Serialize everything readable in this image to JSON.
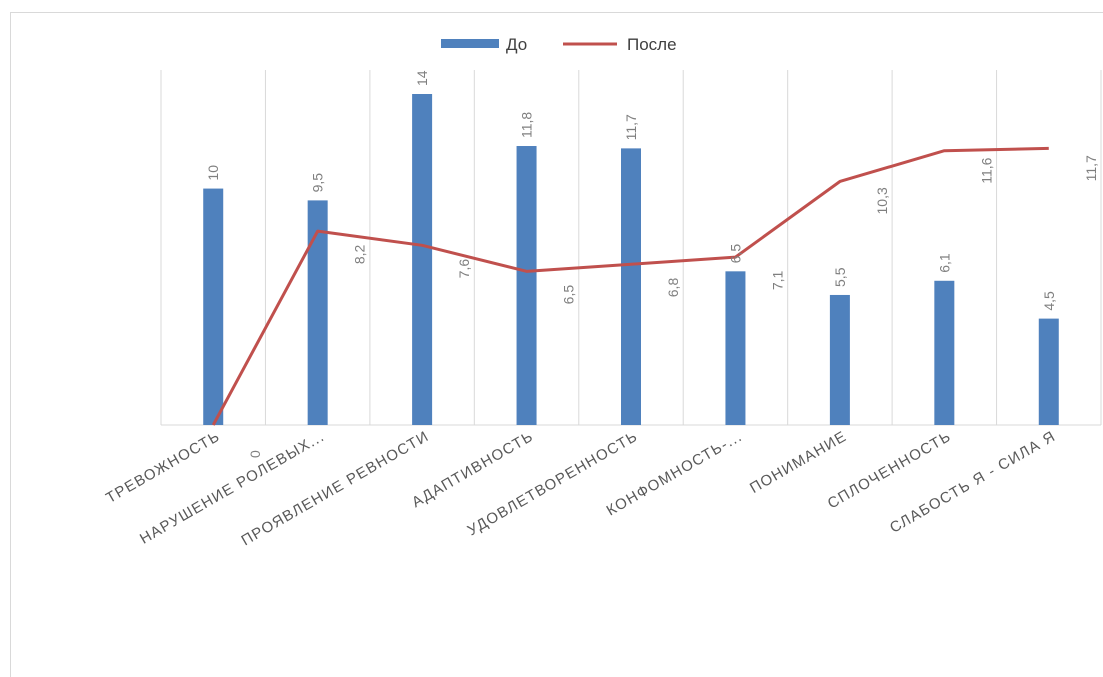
{
  "chart_data": {
    "type": "bar",
    "categories": [
      "ТРЕВОЖНОСТЬ",
      "НАРУШЕНИЕ РОЛЕВЫХ...",
      "ПРОЯВЛЕНИЕ РЕВНОСТИ",
      "АДАПТИВНОСТЬ",
      "УДОВЛЕТВОРЕННОСТЬ",
      "КОНФОМНОСТЬ-...",
      "ПОНИМАНИЕ",
      "СПЛОЧЕННОСТЬ",
      "СЛАБОСТЬ Я - СИЛА Я"
    ],
    "series": [
      {
        "name": "До",
        "chart_type": "bar",
        "color": "#4f81bd",
        "values": [
          10,
          9.5,
          14,
          11.8,
          11.7,
          6.5,
          5.5,
          6.1,
          4.5
        ],
        "labels": [
          "10",
          "9,5",
          "14",
          "11,8",
          "11,7",
          "6,5",
          "5,5",
          "6,1",
          "4,5"
        ]
      },
      {
        "name": "После",
        "chart_type": "line",
        "color": "#c0504d",
        "values": [
          0,
          8.2,
          7.6,
          6.5,
          6.8,
          7.1,
          10.3,
          11.6,
          11.7
        ],
        "labels": [
          "0",
          "8,2",
          "7,6",
          "6,5",
          "6,8",
          "7,1",
          "10,3",
          "11,6",
          "11,7"
        ]
      }
    ],
    "ylim": [
      0,
      15
    ],
    "grid": "vertical",
    "legend": "top"
  }
}
